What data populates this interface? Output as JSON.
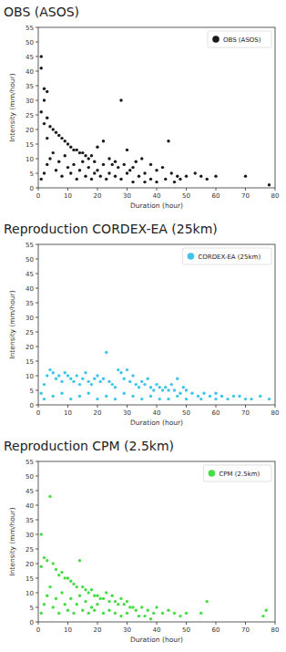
{
  "chart_data": [
    {
      "type": "scatter",
      "title": "OBS (ASOS)",
      "x_label": "Duration (hour)",
      "y_label": "Intensity (mm/hour)",
      "xlim": [
        0,
        80
      ],
      "ylim": [
        0,
        55
      ],
      "xticks": [
        0,
        10,
        20,
        30,
        40,
        50,
        60,
        70,
        80
      ],
      "yticks": [
        0,
        5,
        10,
        15,
        20,
        25,
        30,
        35,
        40,
        45,
        50,
        55
      ],
      "legend": "upper right",
      "x": [
        1,
        1,
        2,
        3,
        2,
        1,
        3,
        2,
        4,
        5,
        6,
        7,
        3,
        8,
        9,
        10,
        11,
        12,
        13,
        14,
        15,
        16,
        17,
        18,
        19,
        20,
        22,
        24,
        25,
        26,
        27,
        28,
        29,
        30,
        31,
        32,
        33,
        35,
        36,
        38,
        40,
        42,
        44,
        45,
        47,
        48,
        50,
        53,
        55,
        57,
        60,
        70,
        78,
        1,
        2,
        3,
        4,
        5,
        6,
        7,
        8,
        9,
        10,
        11,
        12,
        13,
        14,
        15,
        16,
        17,
        18,
        19,
        20,
        21,
        22,
        23,
        24,
        26,
        28,
        30,
        32,
        34,
        36,
        38,
        40,
        43,
        46
      ],
      "series": [
        {
          "name": "OBS (ASOS)",
          "color": "#1a1a1a",
          "marker": "circle",
          "values": [
            45,
            41,
            34,
            33,
            30,
            26,
            24,
            22,
            21,
            20,
            19,
            18,
            17,
            17,
            16,
            15,
            14,
            13,
            13,
            12,
            12,
            11,
            10,
            11,
            9,
            14,
            16,
            10,
            8,
            9,
            7,
            30,
            8,
            13,
            6,
            7,
            9,
            10,
            5,
            8,
            6,
            7,
            16,
            5,
            4,
            3,
            4,
            5,
            4,
            3,
            4,
            4,
            1,
            3,
            5,
            8,
            10,
            12,
            6,
            9,
            4,
            11,
            7,
            5,
            8,
            3,
            6,
            9,
            4,
            7,
            3,
            5,
            6,
            4,
            8,
            3,
            5,
            4,
            3,
            5,
            2,
            4,
            2,
            3,
            2,
            3,
            2
          ]
        }
      ]
    },
    {
      "type": "scatter",
      "title": "Reproduction CORDEX-EA (25km)",
      "x_label": "Duration (hour)",
      "y_label": "Intensity (mm/hour)",
      "xlim": [
        0,
        80
      ],
      "ylim": [
        0,
        55
      ],
      "xticks": [
        0,
        10,
        20,
        30,
        40,
        50,
        60,
        70,
        80
      ],
      "yticks": [
        0,
        5,
        10,
        15,
        20,
        25,
        30,
        35,
        40,
        45,
        50,
        55
      ],
      "legend": "upper right",
      "x": [
        1,
        2,
        3,
        4,
        5,
        6,
        7,
        8,
        9,
        10,
        11,
        12,
        13,
        14,
        15,
        16,
        17,
        18,
        19,
        20,
        21,
        22,
        23,
        24,
        25,
        26,
        27,
        28,
        29,
        30,
        31,
        32,
        33,
        34,
        35,
        36,
        37,
        38,
        39,
        40,
        41,
        42,
        43,
        44,
        45,
        46,
        47,
        48,
        49,
        50,
        52,
        54,
        56,
        58,
        60,
        62,
        64,
        66,
        68,
        70,
        72,
        75,
        78,
        2,
        5,
        8,
        11,
        14,
        17,
        20,
        23,
        26,
        29,
        32,
        35,
        38,
        41,
        44,
        47,
        50,
        55,
        60
      ],
      "series": [
        {
          "name": "CORDEX-EA (25km)",
          "color": "#3ec6ea",
          "marker": "circle",
          "values": [
            4,
            7,
            10,
            12,
            11,
            9,
            10,
            8,
            11,
            10,
            9,
            8,
            10,
            7,
            9,
            11,
            8,
            7,
            9,
            10,
            8,
            9,
            18,
            8,
            7,
            6,
            12,
            11,
            9,
            12,
            8,
            10,
            7,
            6,
            8,
            7,
            9,
            6,
            5,
            7,
            6,
            5,
            6,
            5,
            7,
            5,
            9,
            4,
            6,
            5,
            4,
            3,
            4,
            3,
            4,
            3,
            2,
            3,
            3,
            2,
            2,
            3,
            2,
            2,
            3,
            4,
            2,
            3,
            4,
            2,
            3,
            2,
            4,
            3,
            2,
            3,
            2,
            2,
            3,
            2,
            2,
            2
          ]
        }
      ]
    },
    {
      "type": "scatter",
      "title": "Reproduction CPM (2.5km)",
      "x_label": "Duration (hour)",
      "y_label": "Intensity (mm/hour)",
      "xlim": [
        0,
        80
      ],
      "ylim": [
        0,
        55
      ],
      "xticks": [
        0,
        10,
        20,
        30,
        40,
        50,
        60,
        70,
        80
      ],
      "yticks": [
        0,
        5,
        10,
        15,
        20,
        25,
        30,
        35,
        40,
        45,
        50,
        55
      ],
      "legend": "upper right",
      "x": [
        4,
        1,
        2,
        3,
        1,
        5,
        6,
        8,
        14,
        7,
        9,
        10,
        11,
        12,
        13,
        15,
        16,
        17,
        18,
        19,
        20,
        21,
        22,
        23,
        24,
        25,
        26,
        27,
        28,
        29,
        30,
        31,
        32,
        33,
        35,
        37,
        39,
        40,
        42,
        44,
        46,
        48,
        50,
        55,
        57,
        76,
        77,
        1,
        2,
        3,
        4,
        5,
        6,
        7,
        8,
        9,
        10,
        11,
        12,
        13,
        14,
        15,
        16,
        17,
        18,
        19,
        20,
        22,
        24,
        26,
        28,
        30,
        34,
        36,
        38
      ],
      "series": [
        {
          "name": "CPM (2.5km)",
          "color": "#44dd44",
          "marker": "circle",
          "values": [
            43,
            30,
            22,
            21,
            19,
            20,
            18,
            17,
            21,
            16,
            15,
            15,
            14,
            13,
            12,
            12,
            11,
            10,
            11,
            9,
            9,
            8,
            8,
            10,
            7,
            9,
            7,
            6,
            8,
            6,
            7,
            5,
            5,
            4,
            5,
            4,
            3,
            5,
            3,
            4,
            3,
            2,
            3,
            3,
            7,
            2,
            4,
            3,
            6,
            9,
            12,
            5,
            8,
            3,
            10,
            6,
            4,
            8,
            3,
            6,
            9,
            4,
            7,
            3,
            5,
            4,
            6,
            3,
            4,
            3,
            2,
            3,
            2,
            2,
            1
          ]
        }
      ]
    }
  ]
}
